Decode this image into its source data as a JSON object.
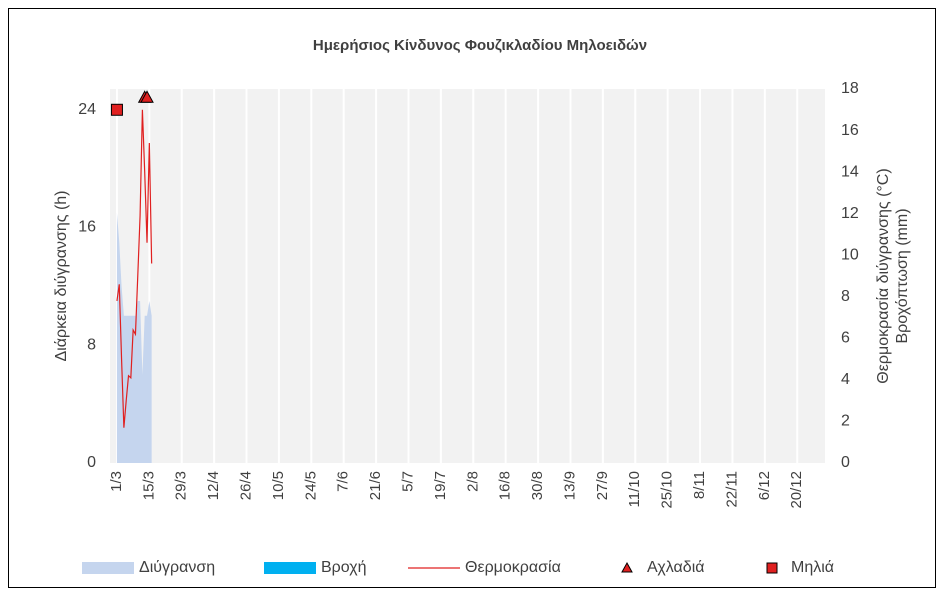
{
  "chart_data": {
    "type": "combo",
    "title": "Ημερήσιος Κίνδυνος Φουζικλαδίου Μηλοειδών",
    "ylabel": "Διάρκεια διύγρανσης (h)",
    "y2label": [
      "Θερμοκρασία διύγρανσης (°C)",
      "Βροχόπτωση (mm)"
    ],
    "x": [
      0,
      1,
      2,
      3,
      4,
      5,
      6,
      7,
      8,
      9,
      10,
      11,
      12,
      13,
      14,
      15
    ],
    "xlim": [
      -3,
      306
    ],
    "xticks": [
      {
        "value": 0,
        "label": "1/3"
      },
      {
        "value": 14,
        "label": "15/3"
      },
      {
        "value": 28,
        "label": "29/3"
      },
      {
        "value": 42,
        "label": "12/4"
      },
      {
        "value": 56,
        "label": "26/4"
      },
      {
        "value": 70,
        "label": "10/5"
      },
      {
        "value": 84,
        "label": "24/5"
      },
      {
        "value": 98,
        "label": "7/6"
      },
      {
        "value": 112,
        "label": "21/6"
      },
      {
        "value": 126,
        "label": "5/7"
      },
      {
        "value": 140,
        "label": "19/7"
      },
      {
        "value": 154,
        "label": "2/8"
      },
      {
        "value": 168,
        "label": "16/8"
      },
      {
        "value": 182,
        "label": "30/8"
      },
      {
        "value": 196,
        "label": "13/9"
      },
      {
        "value": 210,
        "label": "27/9"
      },
      {
        "value": 224,
        "label": "11/10"
      },
      {
        "value": 238,
        "label": "25/10"
      },
      {
        "value": 252,
        "label": "8/11"
      },
      {
        "value": 266,
        "label": "22/11"
      },
      {
        "value": 280,
        "label": "6/12"
      },
      {
        "value": 294,
        "label": "20/12"
      }
    ],
    "ylim": [
      0,
      25.4
    ],
    "yticks": [
      0,
      8,
      16,
      24
    ],
    "y2lim": [
      0,
      18
    ],
    "y2ticks": [
      0,
      2,
      4,
      6,
      8,
      10,
      12,
      14,
      16,
      18
    ],
    "series": [
      {
        "name": "Διύγρανση",
        "type": "area",
        "color": "#c5d5ee",
        "values": [
          17,
          15,
          12,
          10,
          10,
          10,
          10,
          10,
          10,
          11,
          11,
          6,
          10,
          10,
          11,
          10
        ]
      },
      {
        "name": "Βροχή",
        "type": "bar",
        "color": "#00b0f0",
        "axis": "y2",
        "values": [
          0,
          0,
          0,
          0,
          0,
          0,
          0,
          0,
          0,
          0,
          0,
          0,
          0,
          0,
          0,
          0
        ]
      },
      {
        "name": "Θερμοκρασία",
        "type": "line",
        "color": "#e02020",
        "axis": "y2",
        "values": [
          7.8,
          8.6,
          5,
          1.7,
          3,
          4.2,
          4.1,
          6.4,
          6.2,
          9,
          11.9,
          17,
          14,
          10.6,
          15.4,
          9.6
        ]
      },
      {
        "name": "Αχλαδιά",
        "type": "triangle",
        "color": "#e02020",
        "axis": "y2",
        "values": [
          null,
          null,
          null,
          null,
          null,
          null,
          null,
          null,
          null,
          null,
          null,
          null,
          17.6,
          17.6,
          null,
          null
        ]
      },
      {
        "name": "Μηλιά",
        "type": "square",
        "color": "#e02020",
        "axis": "y2",
        "values": [
          17,
          null,
          null,
          null,
          null,
          null,
          null,
          null,
          null,
          null,
          null,
          null,
          null,
          null,
          null,
          null
        ]
      }
    ]
  }
}
